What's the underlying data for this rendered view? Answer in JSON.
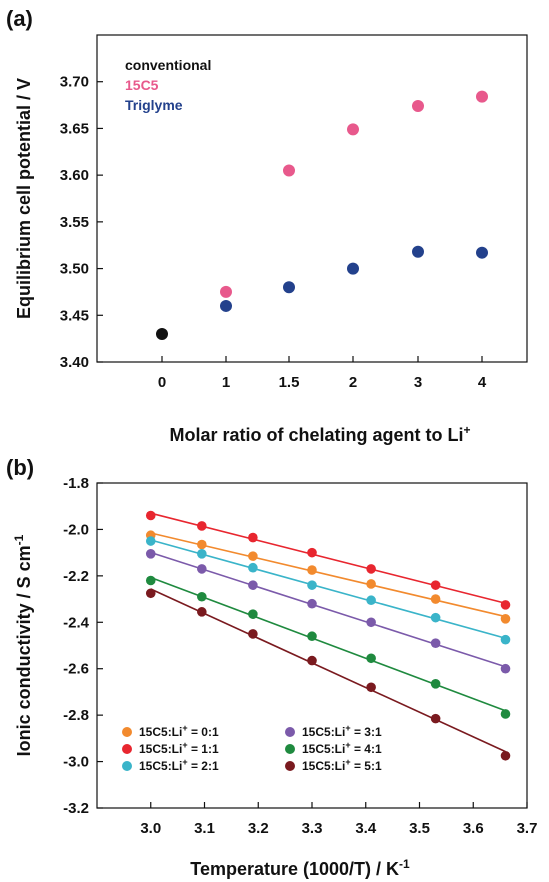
{
  "chart_data": [
    {
      "panel_label": "(a)",
      "type": "scatter",
      "xlabel_main": "Molar ratio of chelating agent to Li",
      "xlabel_sup": "+",
      "ylabel": "Equilibrium cell potential / V",
      "categories": [
        "0",
        "1",
        "1.5",
        "2",
        "3",
        "4"
      ],
      "ylim": [
        3.4,
        3.75
      ],
      "yticks": [
        "3.40",
        "3.45",
        "3.50",
        "3.55",
        "3.60",
        "3.65",
        "3.70"
      ],
      "legend_position": "top-left",
      "series": [
        {
          "name": "conventional",
          "color": "#111111",
          "points": [
            {
              "x": "0",
              "y": 3.43
            }
          ]
        },
        {
          "name": "15C5",
          "color": "#e8598c",
          "points": [
            {
              "x": "1",
              "y": 3.475
            },
            {
              "x": "1.5",
              "y": 3.605
            },
            {
              "x": "2",
              "y": 3.649
            },
            {
              "x": "3",
              "y": 3.674
            },
            {
              "x": "4",
              "y": 3.684
            }
          ]
        },
        {
          "name": "Triglyme",
          "color": "#23418c",
          "points": [
            {
              "x": "1",
              "y": 3.46
            },
            {
              "x": "1.5",
              "y": 3.48
            },
            {
              "x": "2",
              "y": 3.5
            },
            {
              "x": "3",
              "y": 3.518
            },
            {
              "x": "4",
              "y": 3.517
            }
          ]
        }
      ]
    },
    {
      "panel_label": "(b)",
      "type": "scatter",
      "xlabel_main": "Temperature (1000/T) / K",
      "xlabel_sup": "-1",
      "ylabel_main": "Ionic conductivity / S cm",
      "ylabel_sup": "-1",
      "xlim": [
        2.9,
        3.7
      ],
      "ylim": [
        -3.2,
        -1.8
      ],
      "xticks": [
        "3.0",
        "3.1",
        "3.2",
        "3.3",
        "3.4",
        "3.5",
        "3.6",
        "3.7"
      ],
      "yticks": [
        "-3.2",
        "-3.0",
        "-2.8",
        "-2.6",
        "-2.4",
        "-2.2",
        "-2.0",
        "-1.8"
      ],
      "x": [
        3.0,
        3.095,
        3.19,
        3.3,
        3.41,
        3.53,
        3.66
      ],
      "legend_position": "bottom-left",
      "series": [
        {
          "name_prefix": "15C5:Li",
          "name_sup": "+",
          "name_suffix": " = 0:1",
          "color": "#f28a2e",
          "values": [
            -2.025,
            -2.065,
            -2.115,
            -2.175,
            -2.235,
            -2.3,
            -2.385
          ]
        },
        {
          "name_prefix": "15C5:Li",
          "name_sup": "+",
          "name_suffix": " = 1:1",
          "color": "#e8262f",
          "values": [
            -1.94,
            -1.985,
            -2.035,
            -2.1,
            -2.17,
            -2.24,
            -2.325
          ]
        },
        {
          "name_prefix": "15C5:Li",
          "name_sup": "+",
          "name_suffix": " = 2:1",
          "color": "#3ab4c9",
          "values": [
            -2.05,
            -2.105,
            -2.165,
            -2.24,
            -2.305,
            -2.38,
            -2.475
          ]
        },
        {
          "name_prefix": "15C5:Li",
          "name_sup": "+",
          "name_suffix": " = 3:1",
          "color": "#7b5aaa",
          "values": [
            -2.105,
            -2.17,
            -2.24,
            -2.32,
            -2.4,
            -2.49,
            -2.6
          ]
        },
        {
          "name_prefix": "15C5:Li",
          "name_sup": "+",
          "name_suffix": " = 4:1",
          "color": "#1f8a3f",
          "values": [
            -2.22,
            -2.29,
            -2.365,
            -2.46,
            -2.555,
            -2.665,
            -2.795
          ]
        },
        {
          "name_prefix": "15C5:Li",
          "name_sup": "+",
          "name_suffix": " = 5:1",
          "color": "#7a1a1f",
          "values": [
            -2.275,
            -2.355,
            -2.45,
            -2.565,
            -2.68,
            -2.815,
            -2.975
          ]
        }
      ]
    }
  ]
}
